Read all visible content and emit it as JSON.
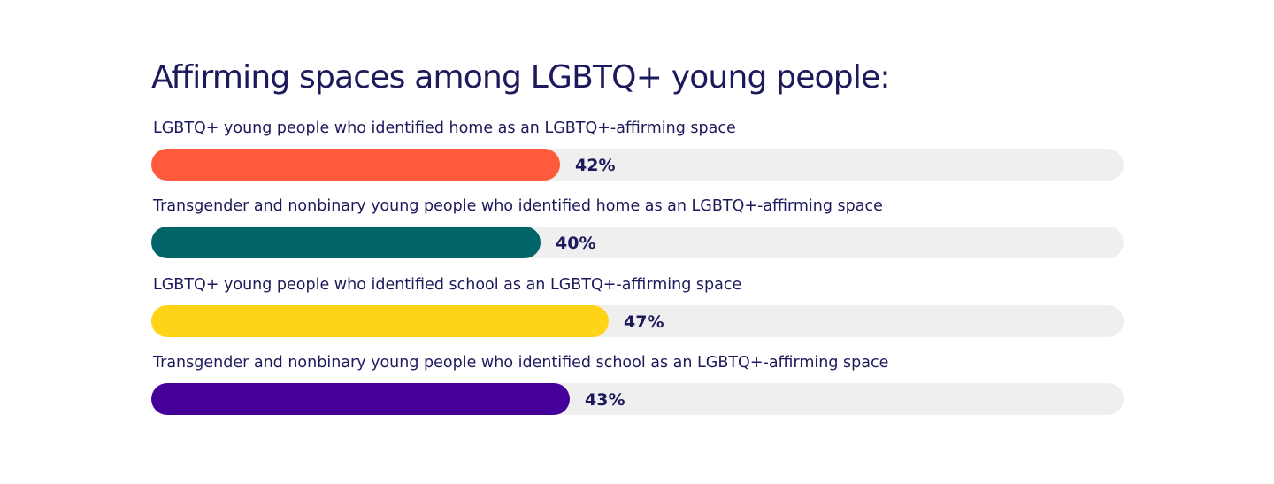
{
  "chart_data": {
    "type": "bar",
    "orientation": "horizontal",
    "title": "Affirming spaces among LGBTQ+ young people:",
    "categories": [
      "LGBTQ+ young people who identified home as an LGBTQ+-affirming space",
      "Transgender and nonbinary young people who identified home as an LGBTQ+-affirming space",
      "LGBTQ+ young people who identified school as an LGBTQ+-affirming space",
      "Transgender and nonbinary young people who identified school as an LGBTQ+-affirming space"
    ],
    "values": [
      42,
      40,
      47,
      43
    ],
    "value_labels": [
      "42%",
      "40%",
      "47%",
      "43%"
    ],
    "unit": "%",
    "xlim": [
      0,
      100
    ],
    "colors": [
      "#ff5a3c",
      "#016468",
      "#ffd316",
      "#440099"
    ],
    "track_color": "#efefef",
    "text_color": "#1d1a5c",
    "grid": false,
    "legend": "none"
  }
}
